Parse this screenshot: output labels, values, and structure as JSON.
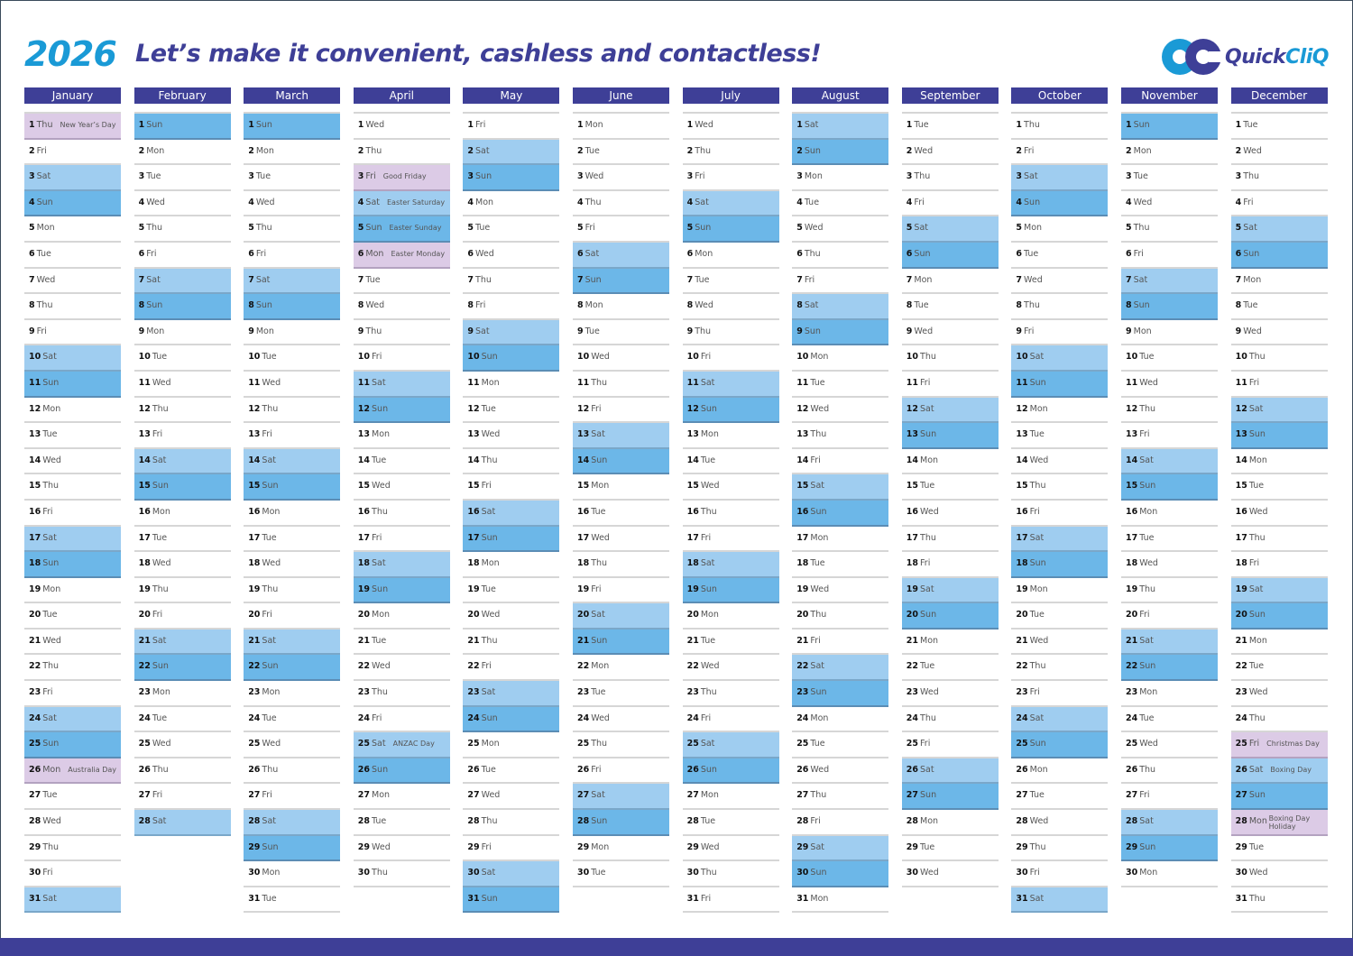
{
  "header": {
    "year": "2026",
    "tagline": "Let’s make it convenient, cashless and contactless!",
    "logo_part1": "Quick",
    "logo_part2": "CliQ"
  },
  "colors": {
    "brand_navy": "#3e3f97",
    "brand_blue": "#1a9ad6",
    "saturday": "#9fcdf0",
    "sunday": "#6cb7e8",
    "holiday": "#dccbe6"
  },
  "calendar": {
    "months": [
      {
        "name": "January",
        "days": 31,
        "first_weekday": "Thu"
      },
      {
        "name": "February",
        "days": 28,
        "first_weekday": "Sun"
      },
      {
        "name": "March",
        "days": 31,
        "first_weekday": "Sun"
      },
      {
        "name": "April",
        "days": 30,
        "first_weekday": "Wed"
      },
      {
        "name": "May",
        "days": 31,
        "first_weekday": "Fri"
      },
      {
        "name": "June",
        "days": 30,
        "first_weekday": "Mon"
      },
      {
        "name": "July",
        "days": 31,
        "first_weekday": "Wed"
      },
      {
        "name": "August",
        "days": 31,
        "first_weekday": "Sat"
      },
      {
        "name": "September",
        "days": 30,
        "first_weekday": "Tue"
      },
      {
        "name": "October",
        "days": 31,
        "first_weekday": "Thu"
      },
      {
        "name": "November",
        "days": 30,
        "first_weekday": "Sun"
      },
      {
        "name": "December",
        "days": 31,
        "first_weekday": "Tue"
      }
    ],
    "weekdays": [
      "Sun",
      "Mon",
      "Tue",
      "Wed",
      "Thu",
      "Fri",
      "Sat"
    ],
    "holidays": [
      {
        "month": 1,
        "day": 1,
        "label": "New Year’s Day",
        "style": "hol"
      },
      {
        "month": 1,
        "day": 26,
        "label": "Australia Day",
        "style": "hol"
      },
      {
        "month": 4,
        "day": 3,
        "label": "Good Friday",
        "style": "hol"
      },
      {
        "month": 4,
        "day": 4,
        "label": "Easter Saturday",
        "style": "sat"
      },
      {
        "month": 4,
        "day": 5,
        "label": "Easter Sunday",
        "style": "sun"
      },
      {
        "month": 4,
        "day": 6,
        "label": "Easter Monday",
        "style": "hol"
      },
      {
        "month": 4,
        "day": 25,
        "label": "ANZAC Day",
        "style": "sat"
      },
      {
        "month": 12,
        "day": 25,
        "label": "Christmas Day",
        "style": "hol"
      },
      {
        "month": 12,
        "day": 26,
        "label": "Boxing Day",
        "style": "sat"
      },
      {
        "month": 12,
        "day": 28,
        "label": "Boxing Day Holiday",
        "style": "hol",
        "two_line": true
      }
    ]
  }
}
